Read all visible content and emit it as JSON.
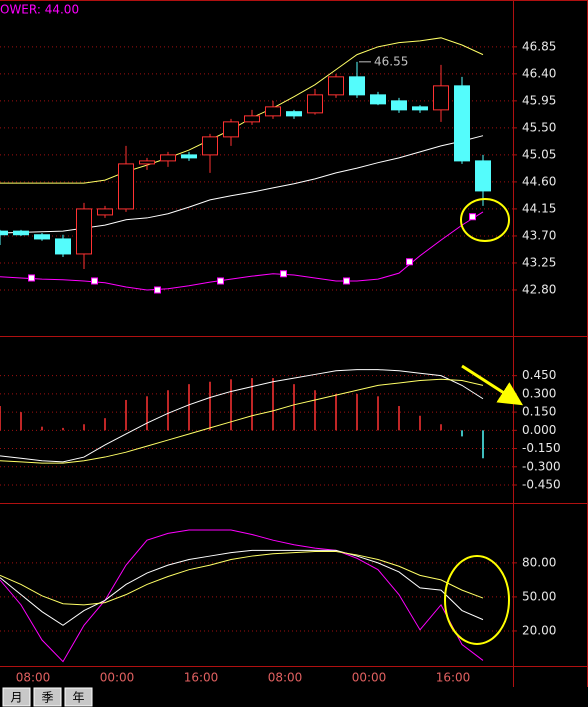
{
  "chart_data": [
    {
      "type": "candlestick",
      "title": "OWER: 44.00",
      "title_color": "#ff00ff",
      "open": [
        43.78,
        43.78,
        43.72,
        43.65,
        43.4,
        44.05,
        44.15,
        44.9,
        44.95,
        45.05,
        45.05,
        45.35,
        45.6,
        45.7,
        45.77,
        45.75,
        46.05,
        46.35,
        46.05,
        45.95,
        45.85,
        45.8,
        46.2,
        44.95
      ],
      "high": [
        43.8,
        43.8,
        43.75,
        43.72,
        44.25,
        44.2,
        45.2,
        45.0,
        45.1,
        45.1,
        45.4,
        45.65,
        45.8,
        45.95,
        45.8,
        46.15,
        46.4,
        46.6,
        46.1,
        46.0,
        45.88,
        46.55,
        46.35,
        45.05
      ],
      "low": [
        43.55,
        43.7,
        43.62,
        43.35,
        43.15,
        44.0,
        44.1,
        44.8,
        44.85,
        44.95,
        44.75,
        45.2,
        45.55,
        45.65,
        45.65,
        45.72,
        46.0,
        46.0,
        45.88,
        45.75,
        45.75,
        45.6,
        44.9,
        44.2
      ],
      "close": [
        43.72,
        43.72,
        43.65,
        43.4,
        44.15,
        44.15,
        44.9,
        44.95,
        45.05,
        45.0,
        45.35,
        45.6,
        45.7,
        45.85,
        45.7,
        46.05,
        46.35,
        46.05,
        45.9,
        45.8,
        45.8,
        46.2,
        44.95,
        44.45
      ],
      "up_color": "#ff3232",
      "down_color": "#54fcfc",
      "series": [
        {
          "color": "#ffff66",
          "values": [
            44.58,
            44.58,
            44.58,
            44.58,
            44.58,
            44.63,
            44.77,
            44.88,
            45.0,
            45.13,
            45.3,
            45.47,
            45.67,
            45.83,
            46.02,
            46.22,
            46.47,
            46.72,
            46.85,
            46.92,
            46.95,
            47.0,
            46.88,
            46.72
          ]
        },
        {
          "color": "#ffffff",
          "values": [
            43.75,
            43.76,
            43.77,
            43.78,
            43.83,
            43.88,
            43.97,
            44.0,
            44.07,
            44.18,
            44.3,
            44.37,
            44.43,
            44.5,
            44.57,
            44.65,
            44.75,
            44.83,
            44.92,
            45.0,
            45.1,
            45.2,
            45.28,
            45.37
          ]
        },
        {
          "color": "#ff00ff",
          "values": [
            43.02,
            43.0,
            42.98,
            42.97,
            42.95,
            42.92,
            42.85,
            42.8,
            42.82,
            42.87,
            42.93,
            42.98,
            43.03,
            43.07,
            43.05,
            43.0,
            42.95,
            42.95,
            42.98,
            43.08,
            43.37,
            43.63,
            43.88,
            44.1
          ]
        }
      ],
      "markers": {
        "color": "#ff00ff",
        "x": [
          1.5,
          4.5,
          7.5,
          10.5,
          13.5,
          16.5,
          19.5,
          22.5
        ],
        "values": [
          43.0,
          42.95,
          42.8,
          42.95,
          43.07,
          42.95,
          43.27,
          44.02
        ]
      },
      "annotation": "46.55",
      "ylim": [
        42.05,
        47.63
      ],
      "yticks": [
        46.85,
        {
          "value": 46.4,
          "label": "46.40"
        },
        45.95,
        {
          "value": 45.5,
          "label": "45.50"
        },
        45.05,
        {
          "value": 44.6,
          "label": "44.60"
        },
        44.15,
        {
          "value": 43.7,
          "label": "43.70"
        },
        43.25,
        {
          "value": 42.8,
          "label": "42.80"
        }
      ],
      "grid": true
    },
    {
      "type": "combo",
      "values": [
        0.2,
        0.15,
        0.03,
        0.02,
        0.05,
        0.1,
        0.25,
        0.28,
        0.33,
        0.38,
        0.4,
        0.42,
        0.43,
        0.43,
        0.38,
        0.33,
        0.3,
        0.3,
        0.28,
        0.2,
        0.12,
        0.05,
        -0.05,
        -0.23
      ],
      "up_color": "#ff3232",
      "down_color": "#54fcfc",
      "series": [
        {
          "color": "#ffffff",
          "values": [
            -0.21,
            -0.23,
            -0.25,
            -0.26,
            -0.22,
            -0.12,
            -0.03,
            0.06,
            0.14,
            0.21,
            0.27,
            0.32,
            0.36,
            0.4,
            0.43,
            0.46,
            0.49,
            0.5,
            0.5,
            0.49,
            0.47,
            0.45,
            0.37,
            0.26
          ]
        },
        {
          "color": "#ffff66",
          "values": [
            -0.25,
            -0.26,
            -0.27,
            -0.27,
            -0.25,
            -0.22,
            -0.18,
            -0.13,
            -0.08,
            -0.03,
            0.02,
            0.07,
            0.12,
            0.16,
            0.21,
            0.25,
            0.29,
            0.33,
            0.37,
            0.39,
            0.41,
            0.42,
            0.41,
            0.37
          ]
        }
      ],
      "ylim": [
        -0.59,
        0.76
      ],
      "yticks": [
        {
          "value": 0.45,
          "label": "0.450"
        },
        {
          "value": 0.3,
          "label": "0.300"
        },
        {
          "value": 0.15,
          "label": "0.150"
        },
        {
          "value": 0,
          "label": "0.000"
        },
        {
          "value": -0.15,
          "label": "-0.150"
        },
        {
          "value": -0.3,
          "label": "-0.300"
        },
        {
          "value": -0.45,
          "label": "-0.450"
        }
      ],
      "grid": true
    },
    {
      "type": "line",
      "categories": [
        null,
        null,
        "08:00",
        null,
        null,
        null,
        "00:00",
        null,
        null,
        null,
        "16:00",
        null,
        null,
        null,
        "08:00",
        null,
        null,
        null,
        "00:00",
        null,
        null,
        null,
        "16:00",
        null
      ],
      "series": [
        {
          "color": "#ff00ff",
          "values": [
            65,
            43,
            12,
            -7,
            25,
            47,
            78,
            100,
            106,
            109,
            109,
            109,
            105,
            100,
            96,
            93,
            91,
            84,
            74,
            52,
            21,
            43,
            8,
            -6
          ]
        },
        {
          "color": "#ffffff",
          "values": [
            67,
            52,
            37,
            25,
            38,
            47,
            61,
            71,
            78,
            83,
            86,
            89,
            91,
            91,
            91,
            91,
            91,
            86,
            80,
            72,
            58,
            56,
            38,
            30
          ]
        },
        {
          "color": "#ffff66",
          "values": [
            69,
            61,
            51,
            44,
            43,
            45,
            52,
            61,
            68,
            74,
            78,
            83,
            86,
            88,
            89,
            90,
            90,
            87,
            83,
            77,
            69,
            65,
            56,
            49
          ]
        }
      ],
      "ylim": [
        -10,
        131
      ],
      "yticks": [
        {
          "value": 80,
          "label": "80.00"
        },
        {
          "value": 50,
          "label": "50.00"
        },
        {
          "value": 20,
          "label": "20.00"
        }
      ],
      "grid": true
    }
  ],
  "tabs": [
    "月",
    "季",
    "年"
  ]
}
